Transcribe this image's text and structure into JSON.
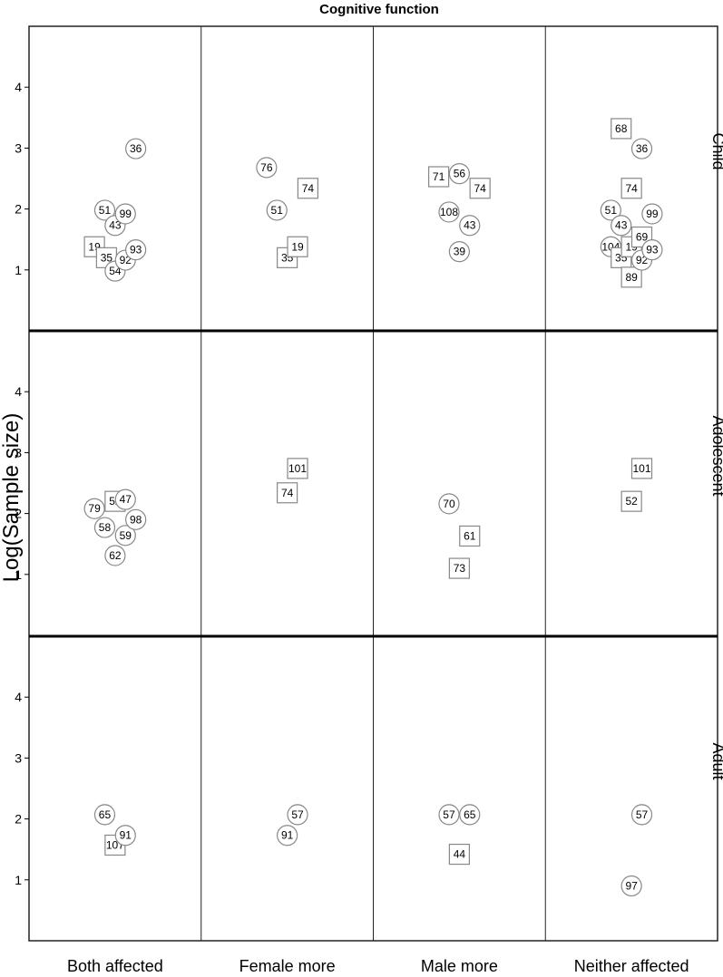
{
  "chart_data": {
    "type": "scatter",
    "title": "Cognitive function",
    "ylabel": "Log(Sample size)",
    "xlabel": "",
    "columns": [
      "Both affected",
      "Female more",
      "Male more",
      "Neither affected"
    ],
    "rows": [
      "Child",
      "Adolescent",
      "Adult"
    ],
    "yticks": [
      1,
      2,
      3,
      4
    ],
    "ylim": [
      0,
      5
    ],
    "shapes": {
      "circle": "circle marker",
      "square": "square marker"
    },
    "marker_color": "#888888",
    "panels": [
      {
        "row": "Child",
        "column": "Both affected",
        "points": [
          {
            "label": "19",
            "shape": "square",
            "x": -0.12,
            "y": 1.38
          },
          {
            "label": "35",
            "shape": "square",
            "x": -0.05,
            "y": 1.2
          },
          {
            "label": "51",
            "shape": "circle",
            "x": -0.06,
            "y": 1.98
          },
          {
            "label": "43",
            "shape": "circle",
            "x": 0.0,
            "y": 1.73
          },
          {
            "label": "54",
            "shape": "circle",
            "x": 0.0,
            "y": 0.98
          },
          {
            "label": "99",
            "shape": "circle",
            "x": 0.06,
            "y": 1.92
          },
          {
            "label": "92",
            "shape": "circle",
            "x": 0.06,
            "y": 1.16
          },
          {
            "label": "36",
            "shape": "circle",
            "x": 0.12,
            "y": 2.99
          },
          {
            "label": "93",
            "shape": "circle",
            "x": 0.12,
            "y": 1.33
          }
        ]
      },
      {
        "row": "Child",
        "column": "Female more",
        "points": [
          {
            "label": "76",
            "shape": "circle",
            "x": -0.12,
            "y": 2.68
          },
          {
            "label": "51",
            "shape": "circle",
            "x": -0.06,
            "y": 1.98
          },
          {
            "label": "35",
            "shape": "square",
            "x": 0.0,
            "y": 1.2
          },
          {
            "label": "19",
            "shape": "square",
            "x": 0.06,
            "y": 1.38
          },
          {
            "label": "74",
            "shape": "square",
            "x": 0.12,
            "y": 2.34
          }
        ]
      },
      {
        "row": "Child",
        "column": "Male more",
        "points": [
          {
            "label": "71",
            "shape": "square",
            "x": -0.12,
            "y": 2.53
          },
          {
            "label": "108",
            "shape": "circle",
            "x": -0.06,
            "y": 1.95
          },
          {
            "label": "56",
            "shape": "circle",
            "x": 0.0,
            "y": 2.58
          },
          {
            "label": "39",
            "shape": "circle",
            "x": 0.0,
            "y": 1.3
          },
          {
            "label": "43",
            "shape": "circle",
            "x": 0.06,
            "y": 1.73
          },
          {
            "label": "74",
            "shape": "square",
            "x": 0.12,
            "y": 2.34
          }
        ]
      },
      {
        "row": "Child",
        "column": "Neither affected",
        "points": [
          {
            "label": "51",
            "shape": "circle",
            "x": -0.12,
            "y": 1.98
          },
          {
            "label": "104",
            "shape": "circle",
            "x": -0.12,
            "y": 1.38
          },
          {
            "label": "68",
            "shape": "square",
            "x": -0.06,
            "y": 3.32
          },
          {
            "label": "43",
            "shape": "circle",
            "x": -0.06,
            "y": 1.73
          },
          {
            "label": "35",
            "shape": "square",
            "x": -0.06,
            "y": 1.2
          },
          {
            "label": "74",
            "shape": "square",
            "x": 0.0,
            "y": 2.34
          },
          {
            "label": "19",
            "shape": "square",
            "x": 0.0,
            "y": 1.38
          },
          {
            "label": "89",
            "shape": "square",
            "x": 0.0,
            "y": 0.88
          },
          {
            "label": "36",
            "shape": "circle",
            "x": 0.06,
            "y": 2.99
          },
          {
            "label": "69",
            "shape": "square",
            "x": 0.06,
            "y": 1.54
          },
          {
            "label": "92",
            "shape": "circle",
            "x": 0.06,
            "y": 1.16
          },
          {
            "label": "99",
            "shape": "circle",
            "x": 0.12,
            "y": 1.92
          },
          {
            "label": "93",
            "shape": "circle",
            "x": 0.12,
            "y": 1.33
          }
        ]
      },
      {
        "row": "Adolescent",
        "column": "Both affected",
        "points": [
          {
            "label": "79",
            "shape": "circle",
            "x": -0.12,
            "y": 2.08
          },
          {
            "label": "58",
            "shape": "circle",
            "x": -0.06,
            "y": 1.77
          },
          {
            "label": "52",
            "shape": "square",
            "x": 0.0,
            "y": 2.2
          },
          {
            "label": "62",
            "shape": "circle",
            "x": 0.0,
            "y": 1.31
          },
          {
            "label": "47",
            "shape": "circle",
            "x": 0.06,
            "y": 2.23
          },
          {
            "label": "59",
            "shape": "circle",
            "x": 0.06,
            "y": 1.64
          },
          {
            "label": "98",
            "shape": "circle",
            "x": 0.12,
            "y": 1.9
          }
        ]
      },
      {
        "row": "Adolescent",
        "column": "Female more",
        "points": [
          {
            "label": "74",
            "shape": "square",
            "x": 0.0,
            "y": 2.34
          },
          {
            "label": "101",
            "shape": "square",
            "x": 0.06,
            "y": 2.74
          }
        ]
      },
      {
        "row": "Adolescent",
        "column": "Male more",
        "points": [
          {
            "label": "70",
            "shape": "circle",
            "x": -0.06,
            "y": 2.16
          },
          {
            "label": "73",
            "shape": "square",
            "x": 0.0,
            "y": 1.1
          },
          {
            "label": "61",
            "shape": "square",
            "x": 0.06,
            "y": 1.63
          }
        ]
      },
      {
        "row": "Adolescent",
        "column": "Neither affected",
        "points": [
          {
            "label": "52",
            "shape": "square",
            "x": 0.0,
            "y": 2.2
          },
          {
            "label": "101",
            "shape": "square",
            "x": 0.06,
            "y": 2.74
          }
        ]
      },
      {
        "row": "Adult",
        "column": "Both affected",
        "points": [
          {
            "label": "65",
            "shape": "circle",
            "x": -0.06,
            "y": 2.07
          },
          {
            "label": "107",
            "shape": "square",
            "x": 0.0,
            "y": 1.57
          },
          {
            "label": "91",
            "shape": "circle",
            "x": 0.06,
            "y": 1.73
          }
        ]
      },
      {
        "row": "Adult",
        "column": "Female more",
        "points": [
          {
            "label": "91",
            "shape": "circle",
            "x": 0.0,
            "y": 1.73
          },
          {
            "label": "57",
            "shape": "circle",
            "x": 0.06,
            "y": 2.07
          }
        ]
      },
      {
        "row": "Adult",
        "column": "Male more",
        "points": [
          {
            "label": "57",
            "shape": "circle",
            "x": -0.06,
            "y": 2.07
          },
          {
            "label": "44",
            "shape": "square",
            "x": 0.0,
            "y": 1.42
          },
          {
            "label": "65",
            "shape": "circle",
            "x": 0.06,
            "y": 2.07
          }
        ]
      },
      {
        "row": "Adult",
        "column": "Neither affected",
        "points": [
          {
            "label": "97",
            "shape": "circle",
            "x": 0.0,
            "y": 0.9
          },
          {
            "label": "57",
            "shape": "circle",
            "x": 0.06,
            "y": 2.07
          }
        ]
      }
    ]
  }
}
